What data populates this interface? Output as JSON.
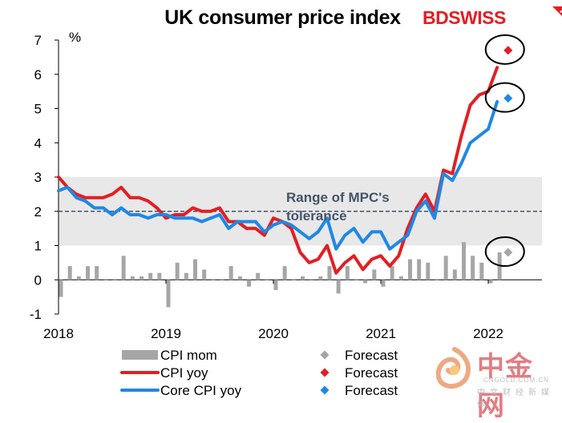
{
  "brand": {
    "logo_text": "BDSWISS",
    "accent": "#e31e24"
  },
  "watermark": {
    "name": "中金网",
    "domain": "CNGOLD.COM.CN",
    "tagline": "中文财经新媒体"
  },
  "chart_data": {
    "type": "line",
    "title": "UK consumer price index",
    "ylabel": "%",
    "ylim": [
      -1,
      7
    ],
    "yticks": [
      -1,
      0,
      1,
      2,
      3,
      4,
      5,
      6,
      7
    ],
    "xlim": [
      2018.0,
      2022.5
    ],
    "xticks": [
      2018,
      2019,
      2020,
      2021,
      2022
    ],
    "grid": false,
    "legend_placement": "bottom",
    "band": {
      "y0": 1,
      "y1": 3,
      "color": "#e8e8e8"
    },
    "reference_line": {
      "y": 2,
      "color": "#44546a",
      "style": "dashed"
    },
    "annotation": {
      "text": "Range of MPC's tolerance",
      "lines": [
        "Range of MPC's",
        "tolerance"
      ]
    },
    "series": [
      {
        "name": "CPI mom",
        "kind": "bar",
        "color": "#a6a6a6",
        "start": 2018.0,
        "step": 0.08333,
        "values": [
          -0.5,
          0.4,
          0.1,
          0.4,
          0.4,
          0.0,
          0.0,
          0.7,
          0.1,
          0.1,
          0.2,
          0.2,
          -0.8,
          0.5,
          0.2,
          0.6,
          0.3,
          0.0,
          0.0,
          0.4,
          0.1,
          -0.2,
          0.2,
          0.0,
          -0.3,
          0.4,
          0.0,
          0.1,
          0.0,
          0.1,
          0.4,
          -0.4,
          0.4,
          0.0,
          -0.1,
          0.3,
          -0.2,
          0.4,
          0.1,
          0.6,
          0.6,
          0.5,
          0.0,
          0.7,
          0.3,
          1.1,
          0.7,
          0.5,
          -0.1,
          0.8
        ]
      },
      {
        "name": "CPI yoy",
        "kind": "line",
        "color": "#e31e24",
        "start": 2018.0,
        "step": 0.08333,
        "values": [
          3.0,
          2.7,
          2.5,
          2.4,
          2.4,
          2.4,
          2.5,
          2.7,
          2.4,
          2.4,
          2.3,
          2.1,
          1.8,
          1.9,
          1.9,
          2.1,
          2.0,
          2.0,
          2.1,
          1.7,
          1.7,
          1.5,
          1.5,
          1.3,
          1.8,
          1.7,
          1.5,
          0.8,
          0.5,
          0.6,
          1.0,
          0.2,
          0.5,
          0.7,
          0.3,
          0.6,
          0.7,
          0.4,
          0.7,
          1.5,
          2.1,
          2.5,
          2.0,
          3.2,
          3.1,
          4.2,
          5.1,
          5.4,
          5.5,
          6.2
        ]
      },
      {
        "name": "Core CPI yoy",
        "kind": "line",
        "color": "#1e88e5",
        "start": 2018.0,
        "step": 0.08333,
        "values": [
          2.6,
          2.7,
          2.4,
          2.3,
          2.1,
          2.1,
          1.9,
          2.1,
          1.9,
          1.9,
          1.8,
          1.9,
          1.9,
          1.8,
          1.8,
          1.8,
          1.7,
          1.8,
          1.9,
          1.5,
          1.7,
          1.7,
          1.7,
          1.4,
          1.6,
          1.7,
          1.6,
          1.4,
          1.2,
          1.4,
          1.8,
          0.9,
          1.3,
          1.5,
          1.1,
          1.4,
          1.4,
          0.9,
          1.1,
          1.3,
          2.0,
          2.3,
          1.8,
          3.1,
          2.9,
          3.4,
          4.0,
          4.2,
          4.4,
          5.2
        ]
      },
      {
        "name": "Forecast",
        "kind": "marker",
        "color": "#a6a6a6",
        "x": 2022.17,
        "y": 0.8
      },
      {
        "name": "Forecast",
        "kind": "marker",
        "color": "#e31e24",
        "x": 2022.17,
        "y": 6.7
      },
      {
        "name": "Forecast",
        "kind": "marker",
        "color": "#1e88e5",
        "x": 2022.17,
        "y": 5.3
      }
    ]
  }
}
